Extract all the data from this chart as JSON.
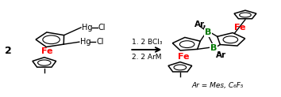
{
  "bg_color": "#ffffff",
  "fe_color": "#ff0000",
  "b_color": "#007700",
  "text_color": "#000000",
  "reaction_step1": "1. 2 BCl₃",
  "reaction_step2": "2. 2 ArM",
  "ar_label": "Ar = Mes, C₆F₅",
  "coefficient": "2",
  "figw": 3.54,
  "figh": 1.23,
  "dpi": 100
}
